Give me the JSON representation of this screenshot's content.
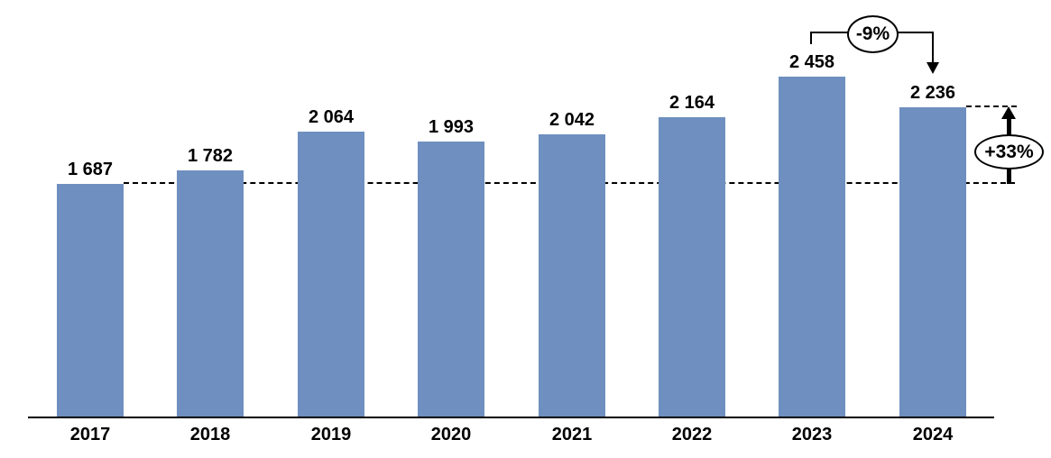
{
  "chart_data": {
    "type": "bar",
    "categories": [
      "2017",
      "2018",
      "2019",
      "2020",
      "2021",
      "2022",
      "2023",
      "2024"
    ],
    "values": [
      1687,
      1782,
      2064,
      1993,
      2042,
      2164,
      2458,
      2236
    ],
    "value_labels": [
      "1 687",
      "1 782",
      "2 064",
      "1 993",
      "2 042",
      "2 164",
      "2 458",
      "2 236"
    ],
    "bar_color": "#6E8FBF",
    "grid": "off",
    "legend": "none",
    "ylim": [
      0,
      2458
    ],
    "reference_lines": [
      {
        "level": 1687,
        "style": "dashed"
      },
      {
        "level": 2236,
        "style": "dashed"
      }
    ],
    "annotations": [
      {
        "shape": "ellipse",
        "label": "-9%"
      },
      {
        "shape": "ellipse",
        "label": "+33%"
      }
    ]
  }
}
